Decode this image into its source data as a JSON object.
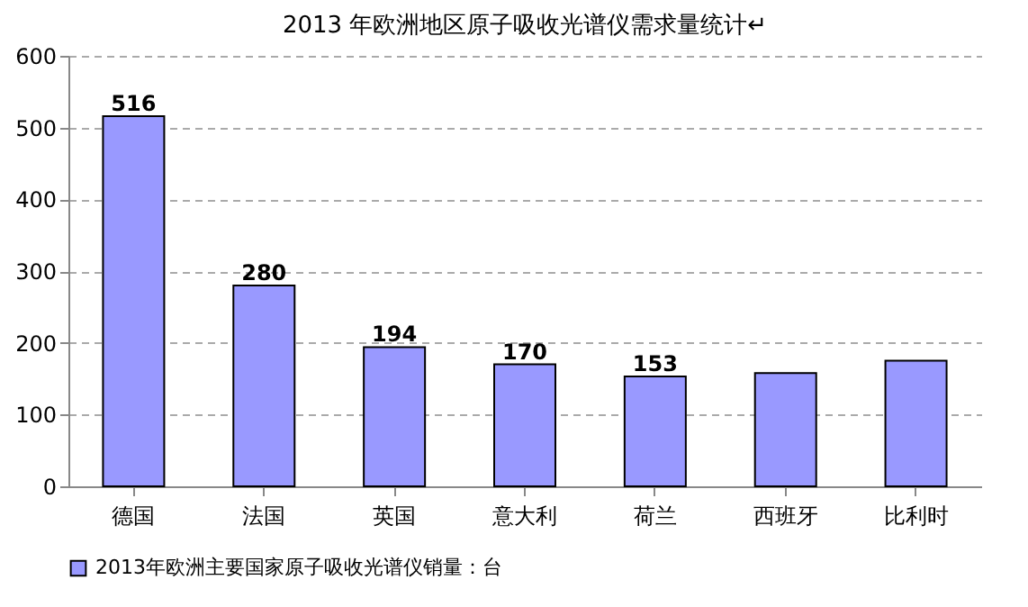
{
  "chart_data": {
    "type": "bar",
    "title": "2013 年欧洲地区原子吸收光谱仪需求量统计↵",
    "categories": [
      "德国",
      "法国",
      "英国",
      "意大利",
      "荷兰",
      "西班牙",
      "比利时"
    ],
    "series": [
      {
        "name": "2013年欧洲主要国家原子吸收光谱仪销量：台",
        "color": "#9999ff",
        "values": [
          516,
          280,
          194,
          170,
          153,
          158,
          175
        ],
        "value_labels": [
          "516",
          "280",
          "194",
          "170",
          "153",
          null,
          null
        ]
      }
    ],
    "ylim": [
      0,
      600
    ],
    "yticks": [
      0,
      100,
      200,
      300,
      400,
      500,
      600
    ],
    "grid": "y",
    "legend": "bottom"
  }
}
